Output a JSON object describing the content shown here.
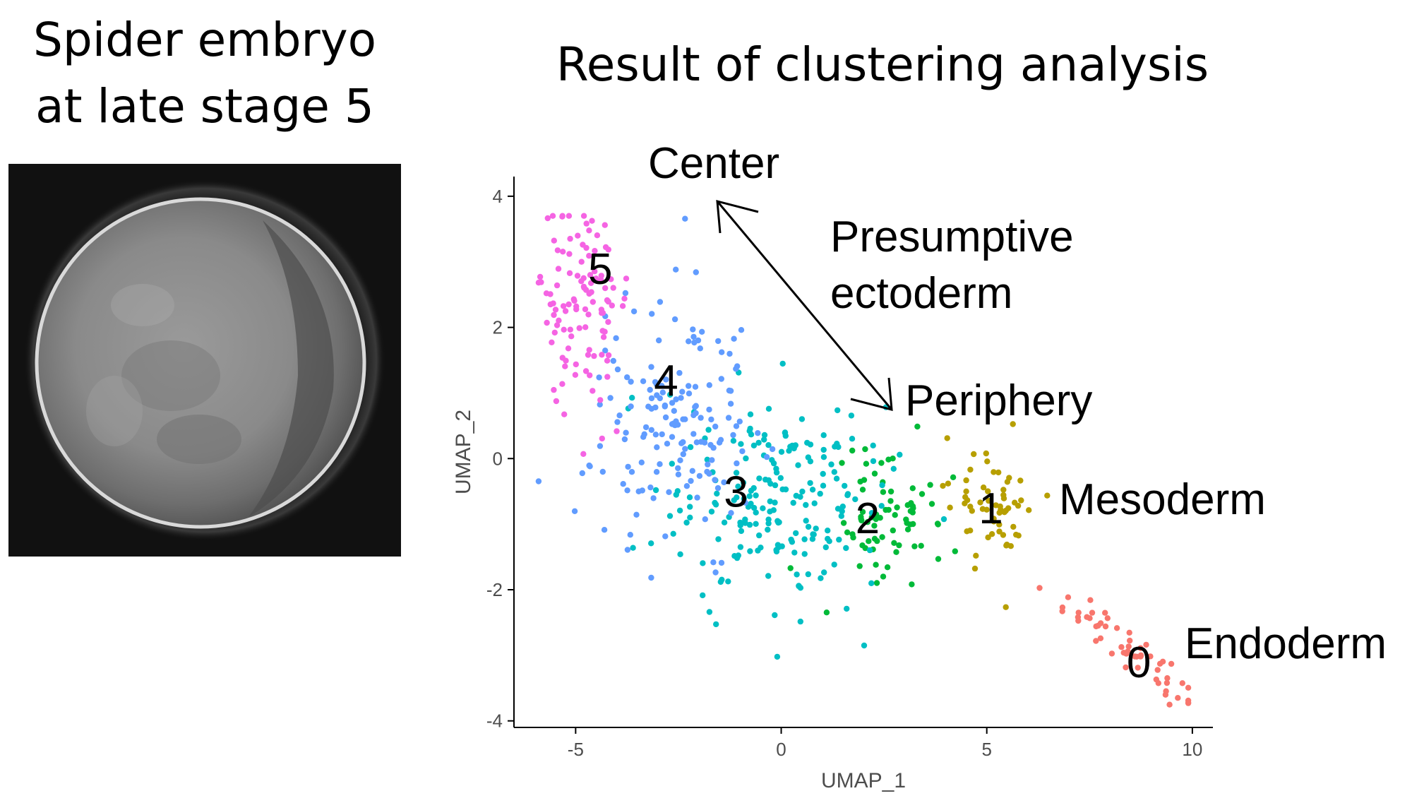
{
  "left_title": [
    "Spider embryo",
    "at late stage 5"
  ],
  "right_title": "Result of clustering analysis",
  "colors": {
    "cluster_0": "#F8766D",
    "cluster_1": "#B79F00",
    "cluster_2": "#00BA38",
    "cluster_3": "#00BFC4",
    "cluster_4": "#619CFF",
    "cluster_5": "#F564E3"
  },
  "chart_data": {
    "type": "scatter",
    "xlabel": "UMAP_1",
    "ylabel": "UMAP_2",
    "xlim": [
      -6.5,
      10.5
    ],
    "ylim": [
      -4.1,
      4.3
    ],
    "x_ticks": [
      "-5",
      "0",
      "5",
      "10"
    ],
    "y_ticks": [
      "-4",
      "-2",
      "0",
      "2",
      "4"
    ],
    "grid": false,
    "series": [
      {
        "name": "0",
        "color_key": "cluster_0",
        "cx": 8.6,
        "cy": -3.0,
        "sx": 0.45,
        "sy": 0.35,
        "n": 55,
        "points": []
      },
      {
        "name": "1",
        "color_key": "cluster_1",
        "cx": 5.2,
        "cy": -0.7,
        "sx": 0.55,
        "sy": 0.45,
        "n": 60,
        "points": []
      },
      {
        "name": "2",
        "color_key": "cluster_2",
        "cx": 2.6,
        "cy": -0.9,
        "sx": 0.7,
        "sy": 0.5,
        "n": 75,
        "points": []
      },
      {
        "name": "3",
        "color_key": "cluster_3",
        "cx": -0.3,
        "cy": -0.6,
        "sx": 1.3,
        "sy": 0.85,
        "n": 200,
        "points": []
      },
      {
        "name": "4",
        "color_key": "cluster_4",
        "cx": -2.6,
        "cy": 0.5,
        "sx": 1.0,
        "sy": 1.0,
        "n": 160,
        "points": []
      },
      {
        "name": "5",
        "color_key": "cluster_5",
        "cx": -4.8,
        "cy": 2.4,
        "sx": 0.55,
        "sy": 0.8,
        "n": 110,
        "points": []
      }
    ],
    "cluster_labels": [
      {
        "text": "5",
        "x": -4.4,
        "y": 2.9
      },
      {
        "text": "4",
        "x": -2.8,
        "y": 1.2
      },
      {
        "text": "3",
        "x": -1.1,
        "y": -0.5
      },
      {
        "text": "2",
        "x": 2.1,
        "y": -0.9
      },
      {
        "text": "1",
        "x": 5.1,
        "y": -0.75
      },
      {
        "text": "0",
        "x": 8.7,
        "y": -3.1
      }
    ],
    "annotations": {
      "center": "Center",
      "presumptive_1": "Presumptive",
      "presumptive_2": "ectoderm",
      "periphery": "Periphery",
      "mesoderm": "Mesoderm",
      "endoderm": "Endoderm"
    }
  }
}
